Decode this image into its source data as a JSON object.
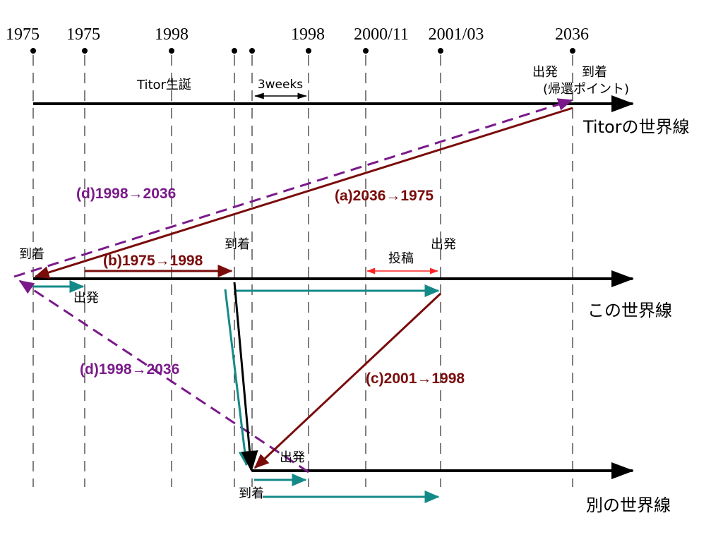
{
  "years": {
    "y1975a": "1975",
    "y1975b": "1975",
    "y1998a": "1998",
    "y1998b": "1998",
    "y2000": "2000/11",
    "y2001": "2001/03",
    "y2036": "2036"
  },
  "labels": {
    "titor_birth": "Titor生誕",
    "three_weeks": "3weeks",
    "depart_top": "出発",
    "arrive_top": "到着",
    "return_point": "(帰還ポイント)",
    "arrive_left": "到着",
    "arrive_mid": "到着",
    "depart_right": "出発",
    "post": "投稿",
    "depart_left": "出発",
    "depart_bottom": "出発",
    "arrive_bottom": "到着"
  },
  "worldlines": {
    "titor": "Titorの世界線",
    "this": "この世界線",
    "other": "別の世界線"
  },
  "trips": {
    "a": "(a)2036→1975",
    "b": "(b)1975→1998",
    "c": "(c)2001→1998",
    "d_upper": "(d)1998→2036",
    "d_lower": "(d)1998→2036"
  },
  "colors": {
    "dark_red": "#7a0b0b",
    "teal": "#148a88",
    "purple": "#7a1a8a",
    "red": "#ff2222",
    "black": "#000000"
  }
}
